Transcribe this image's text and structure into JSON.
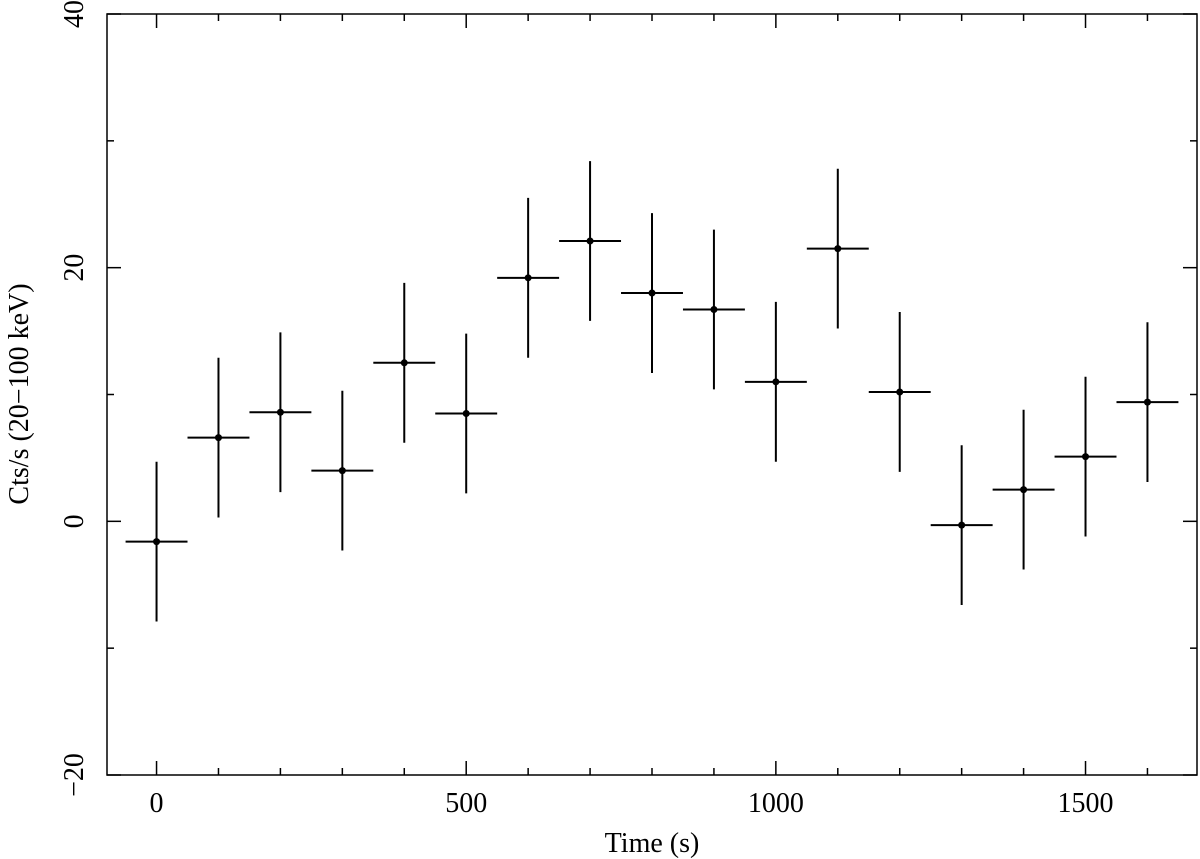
{
  "chart_data": {
    "type": "scatter",
    "title": "",
    "xlabel": "Time (s)",
    "ylabel": "Cts/s (20−100 keV)",
    "xlim": [
      -80,
      1680
    ],
    "ylim": [
      -20,
      40
    ],
    "x_ticks": [
      0,
      500,
      1000,
      1500
    ],
    "x_tick_labels": [
      "0",
      "500",
      "1000",
      "1500"
    ],
    "x_minor_ticks": [
      100,
      200,
      300,
      400,
      600,
      700,
      800,
      900,
      1100,
      1200,
      1300,
      1400,
      1600
    ],
    "y_ticks": [
      -20,
      0,
      20,
      40
    ],
    "y_tick_labels": [
      "−20",
      "0",
      "20",
      "40"
    ],
    "y_minor_ticks": [
      -10,
      10,
      30
    ],
    "grid": false,
    "series": [
      {
        "x": [
          0,
          100,
          200,
          300,
          400,
          500,
          600,
          700,
          800,
          900,
          1000,
          1100,
          1200,
          1300,
          1400,
          1500,
          1600
        ],
        "x_err": [
          50,
          50,
          50,
          50,
          50,
          50,
          50,
          50,
          50,
          50,
          50,
          50,
          50,
          50,
          50,
          50,
          50
        ],
        "y": [
          -1.6,
          6.6,
          8.6,
          4.0,
          12.5,
          8.5,
          19.2,
          22.1,
          18.0,
          16.7,
          11.0,
          21.5,
          10.2,
          -0.3,
          2.5,
          5.1,
          9.4
        ],
        "y_err": [
          6.3,
          6.3,
          6.3,
          6.3,
          6.3,
          6.3,
          6.3,
          6.3,
          6.3,
          6.3,
          6.3,
          6.3,
          6.3,
          6.3,
          6.3,
          6.3,
          6.3
        ],
        "color": "#000000"
      }
    ]
  }
}
